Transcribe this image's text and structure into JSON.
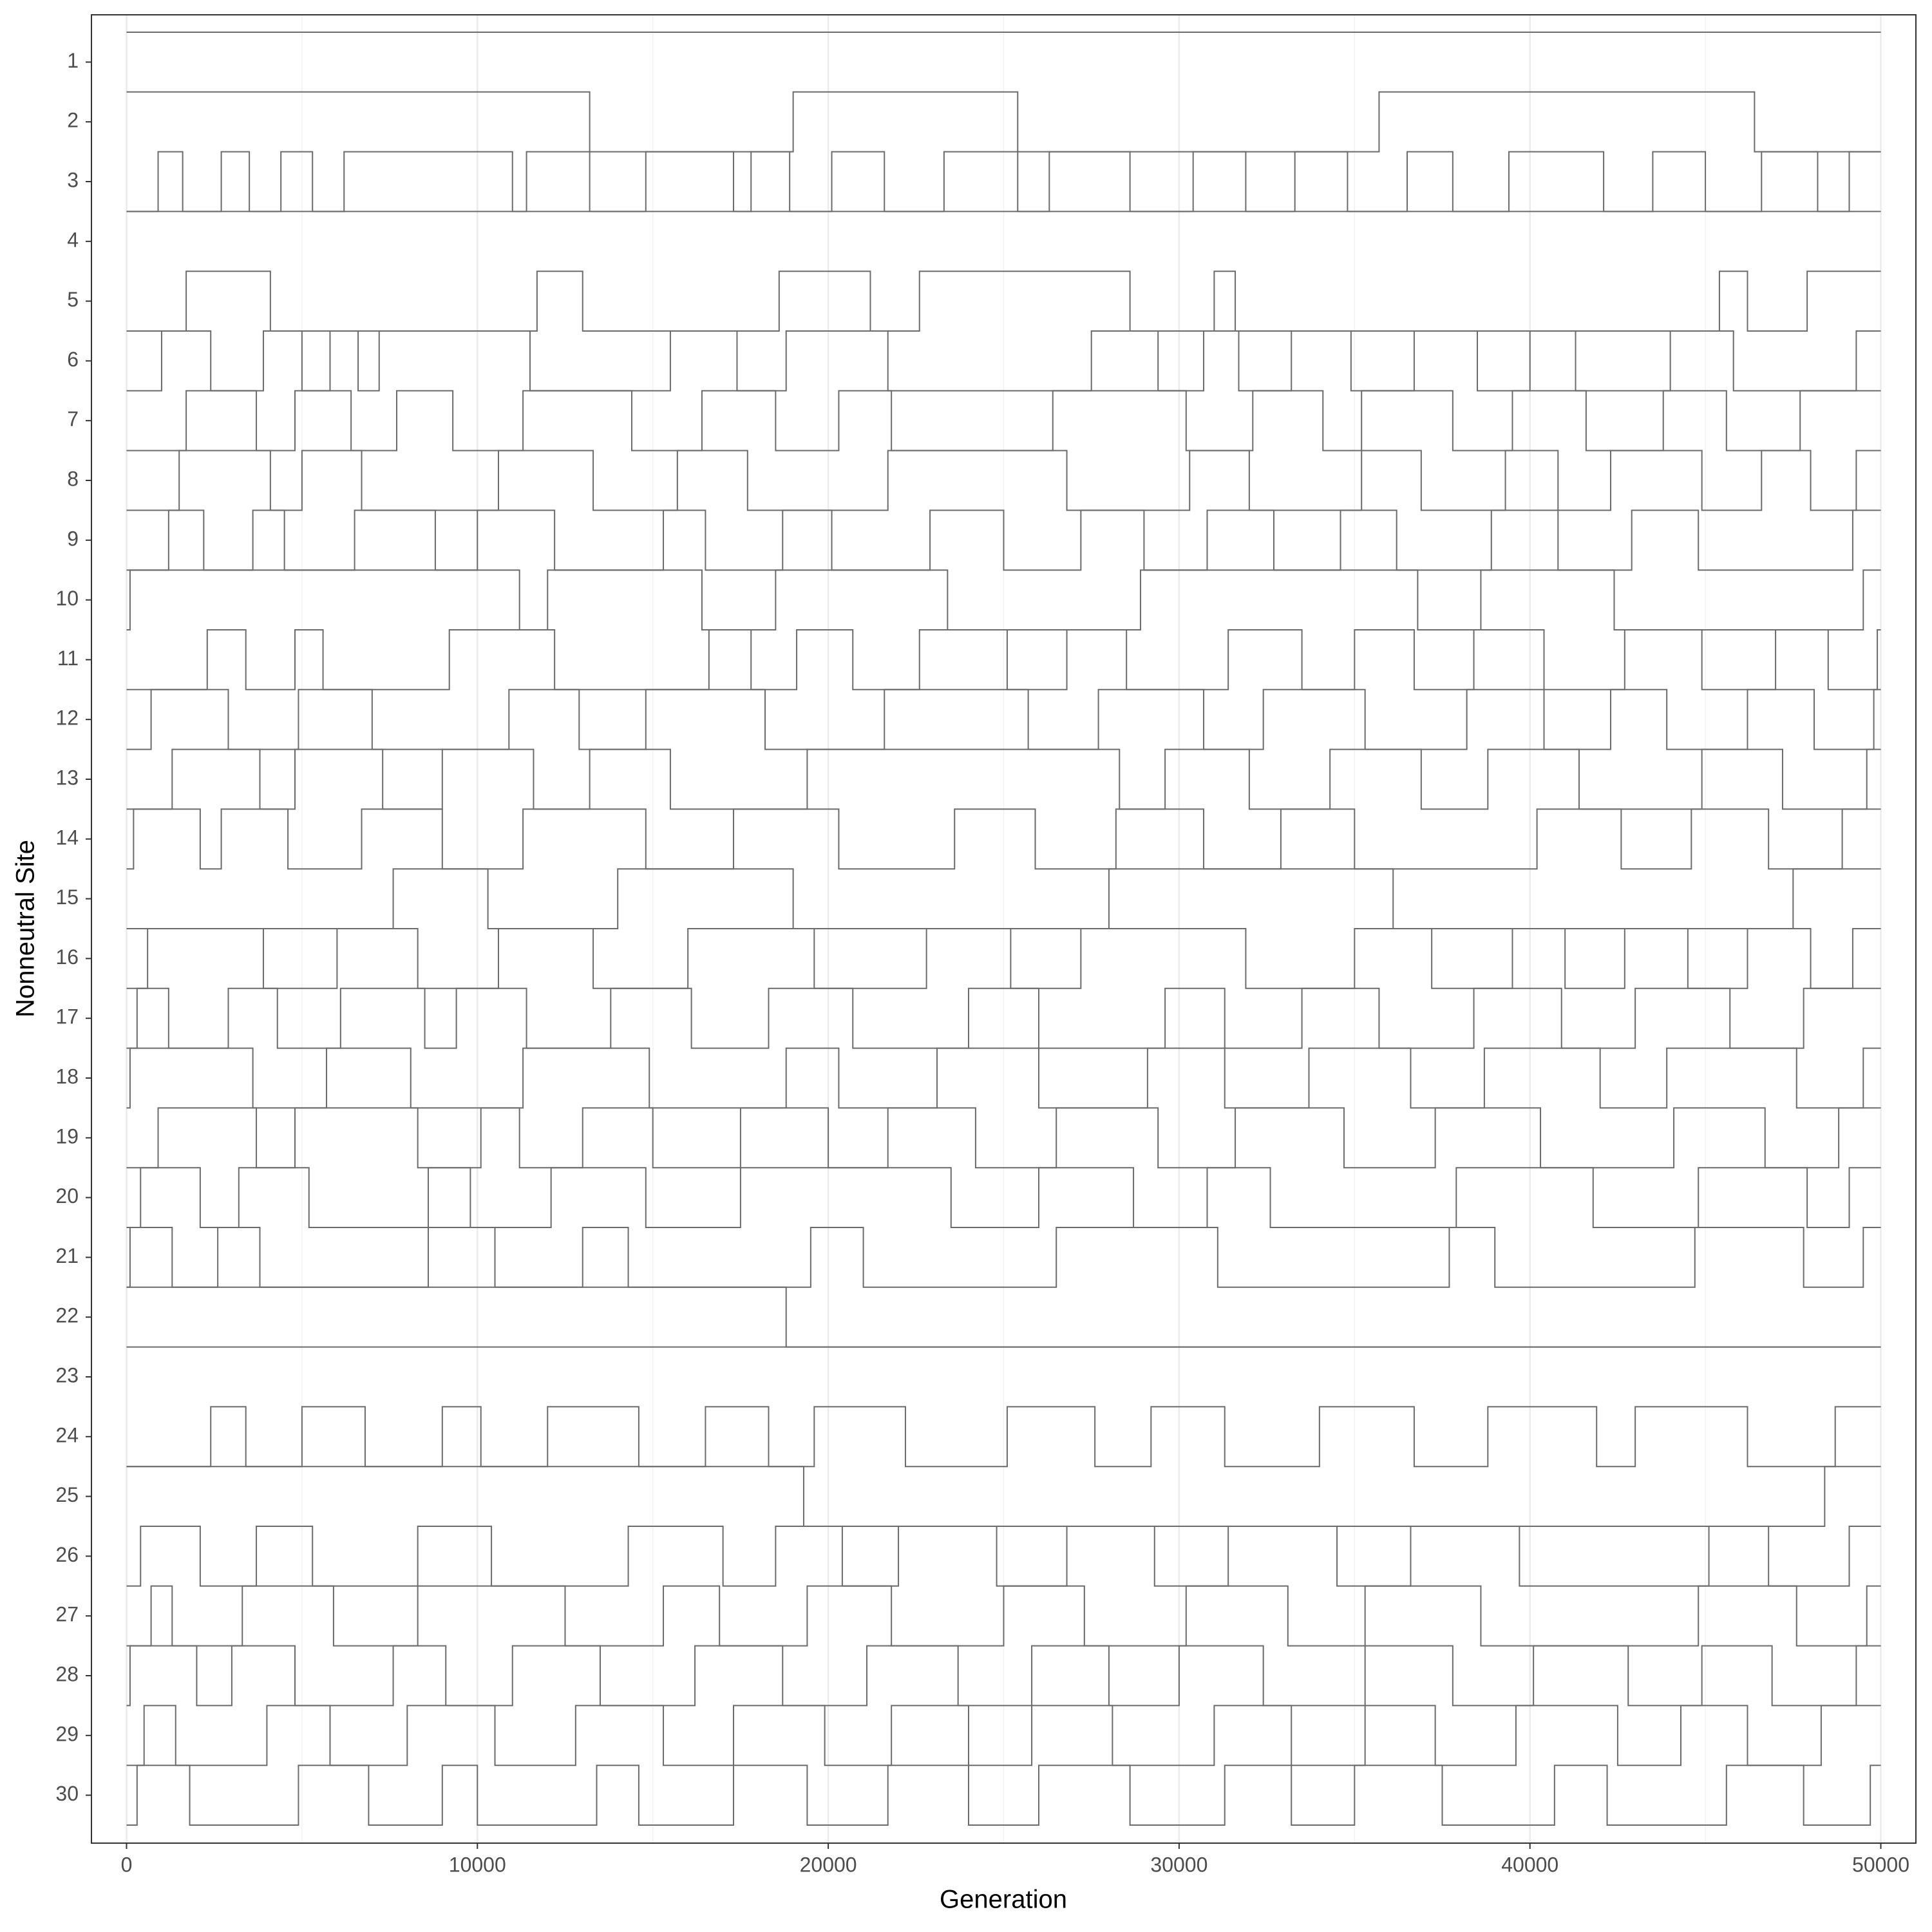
{
  "chart_data": {
    "type": "step-line",
    "x_label": "Generation",
    "y_label": "Nonneutral Site",
    "color": "#6b6b6b",
    "grid": true,
    "minor_grid": true,
    "xlim": [
      -1000,
      51000
    ],
    "xticks": [
      0,
      10000,
      20000,
      30000,
      40000,
      50000
    ],
    "ylim": [
      0,
      1
    ],
    "series": [
      {
        "name": "1",
        "x": [
          0,
          50000
        ],
        "values": [
          1,
          1
        ]
      },
      {
        "name": "2",
        "x": [
          0,
          13200,
          19000,
          25400,
          35700,
          46400,
          50000
        ],
        "values": [
          1,
          0,
          1,
          0,
          1,
          0,
          0
        ]
      },
      {
        "name": "3",
        "x": [
          0,
          900,
          1600,
          2700,
          3500,
          4400,
          5300,
          6200,
          11000,
          11400,
          13200,
          14800,
          17300,
          17800,
          18900,
          20100,
          21600,
          23300,
          25400,
          26300,
          28600,
          30400,
          31900,
          33300,
          34800,
          36500,
          37800,
          39400,
          42100,
          43500,
          45000,
          46600,
          48200,
          49100,
          50000
        ],
        "values": [
          0,
          1,
          0,
          1,
          0,
          1,
          0,
          1,
          0,
          1,
          0,
          1,
          0,
          1,
          0,
          1,
          0,
          1,
          0,
          1,
          0,
          1,
          0,
          1,
          0,
          1,
          0,
          1,
          0,
          1,
          0,
          1,
          0,
          1,
          1
        ]
      },
      {
        "name": "4",
        "x": [
          0,
          50000
        ],
        "values": [
          1,
          1
        ]
      },
      {
        "name": "5",
        "x": [
          0,
          1700,
          4100,
          11700,
          13000,
          18600,
          21200,
          22600,
          28600,
          31000,
          31600,
          45400,
          46200,
          47900,
          50000
        ],
        "values": [
          0,
          1,
          0,
          1,
          0,
          1,
          0,
          1,
          0,
          1,
          0,
          1,
          0,
          1,
          1
        ]
      },
      {
        "name": "6",
        "x": [
          0,
          1000,
          2400,
          3900,
          5000,
          5800,
          6600,
          7200,
          11500,
          15500,
          17400,
          18800,
          21700,
          27500,
          29400,
          30700,
          31700,
          33200,
          34900,
          36700,
          38500,
          40000,
          41300,
          44000,
          45800,
          49300,
          50000
        ],
        "values": [
          0,
          1,
          0,
          1,
          0,
          1,
          0,
          1,
          0,
          1,
          0,
          1,
          0,
          1,
          0,
          1,
          0,
          1,
          0,
          1,
          0,
          1,
          0,
          1,
          0,
          1,
          1
        ]
      },
      {
        "name": "7",
        "x": [
          0,
          1700,
          3700,
          4800,
          6400,
          7700,
          9300,
          11300,
          14400,
          16400,
          18500,
          20300,
          21800,
          26400,
          30200,
          32100,
          34100,
          35200,
          37800,
          39500,
          41600,
          43800,
          45600,
          47700,
          50000
        ],
        "values": [
          0,
          1,
          0,
          1,
          0,
          1,
          0,
          1,
          0,
          1,
          0,
          1,
          0,
          1,
          0,
          1,
          0,
          1,
          0,
          1,
          0,
          1,
          0,
          1,
          1
        ]
      },
      {
        "name": "8",
        "x": [
          0,
          1500,
          4100,
          5000,
          6700,
          10600,
          13300,
          15700,
          17700,
          21700,
          26800,
          30300,
          32000,
          35200,
          36900,
          39300,
          40800,
          42300,
          44900,
          46600,
          48000,
          49300,
          50000
        ],
        "values": [
          0,
          1,
          0,
          1,
          0,
          1,
          0,
          1,
          0,
          1,
          0,
          1,
          0,
          1,
          0,
          1,
          0,
          1,
          0,
          1,
          0,
          1,
          1
        ]
      },
      {
        "name": "9",
        "x": [
          0,
          1200,
          2200,
          3600,
          4500,
          6500,
          8800,
          10000,
          12200,
          15300,
          16500,
          18700,
          20100,
          22900,
          25000,
          27200,
          29000,
          30800,
          32700,
          34600,
          36200,
          38900,
          40800,
          42900,
          44800,
          49200,
          50000
        ],
        "values": [
          0,
          1,
          0,
          1,
          0,
          1,
          0,
          1,
          0,
          1,
          0,
          1,
          0,
          1,
          0,
          1,
          0,
          1,
          0,
          1,
          0,
          1,
          0,
          1,
          0,
          1,
          1
        ]
      },
      {
        "name": "10",
        "x": [
          0,
          100,
          11200,
          12000,
          16400,
          18500,
          23400,
          28900,
          36800,
          38600,
          42400,
          49500,
          50000
        ],
        "values": [
          0,
          1,
          0,
          1,
          0,
          1,
          0,
          1,
          0,
          1,
          0,
          1,
          1
        ]
      },
      {
        "name": "11",
        "x": [
          0,
          2300,
          3400,
          4800,
          5600,
          9200,
          12200,
          16600,
          17800,
          19100,
          20700,
          22600,
          25100,
          26800,
          28500,
          31400,
          33500,
          35000,
          36700,
          38400,
          40400,
          42700,
          44900,
          47000,
          48500,
          49900,
          50000
        ],
        "values": [
          0,
          1,
          0,
          1,
          0,
          1,
          0,
          1,
          0,
          1,
          0,
          1,
          0,
          1,
          0,
          1,
          0,
          1,
          0,
          1,
          0,
          1,
          0,
          1,
          0,
          1,
          1
        ]
      },
      {
        "name": "12",
        "x": [
          0,
          700,
          2900,
          4900,
          7000,
          10900,
          12900,
          14800,
          18200,
          21600,
          25700,
          27700,
          30700,
          32400,
          35300,
          38200,
          40400,
          42300,
          43900,
          46200,
          48100,
          49800,
          50000
        ],
        "values": [
          0,
          1,
          0,
          1,
          0,
          1,
          0,
          1,
          0,
          1,
          0,
          1,
          0,
          1,
          0,
          1,
          0,
          1,
          0,
          1,
          0,
          1,
          1
        ]
      },
      {
        "name": "13",
        "x": [
          0,
          1300,
          3800,
          4800,
          7300,
          9000,
          11600,
          13200,
          15500,
          19400,
          28300,
          29600,
          32000,
          34300,
          36900,
          38800,
          41400,
          44900,
          47200,
          49600,
          50000
        ],
        "values": [
          0,
          1,
          0,
          1,
          0,
          1,
          0,
          1,
          0,
          1,
          0,
          1,
          0,
          1,
          0,
          1,
          0,
          1,
          0,
          1,
          1
        ]
      },
      {
        "name": "14",
        "x": [
          0,
          200,
          2100,
          2700,
          4600,
          6700,
          9000,
          11300,
          14800,
          17300,
          20300,
          23600,
          25900,
          28200,
          30700,
          32900,
          35000,
          40200,
          42600,
          44600,
          46800,
          48900,
          50000
        ],
        "values": [
          0,
          1,
          0,
          1,
          0,
          1,
          0,
          1,
          0,
          1,
          0,
          1,
          0,
          1,
          0,
          1,
          0,
          1,
          0,
          1,
          0,
          1,
          1
        ]
      },
      {
        "name": "15",
        "x": [
          0,
          7600,
          10300,
          14000,
          19000,
          28000,
          36100,
          47500,
          50000
        ],
        "values": [
          0,
          1,
          0,
          1,
          0,
          1,
          0,
          1,
          1
        ]
      },
      {
        "name": "16",
        "x": [
          0,
          600,
          3900,
          6000,
          8300,
          10600,
          13300,
          16000,
          19600,
          22800,
          25200,
          27200,
          31900,
          35000,
          37200,
          39500,
          41000,
          42700,
          44500,
          46200,
          48000,
          49200,
          50000
        ],
        "values": [
          0,
          1,
          0,
          1,
          0,
          1,
          0,
          1,
          0,
          1,
          0,
          1,
          0,
          1,
          0,
          1,
          0,
          1,
          0,
          1,
          0,
          1,
          1
        ]
      },
      {
        "name": "17",
        "x": [
          0,
          300,
          1200,
          2900,
          4300,
          6100,
          8500,
          9400,
          11400,
          13800,
          16100,
          18300,
          20700,
          24000,
          26000,
          29600,
          31300,
          33500,
          35700,
          38400,
          40900,
          43000,
          45700,
          47800,
          50000
        ],
        "values": [
          0,
          1,
          0,
          1,
          0,
          1,
          0,
          1,
          0,
          1,
          0,
          1,
          0,
          1,
          0,
          1,
          0,
          1,
          0,
          1,
          0,
          1,
          0,
          1,
          1
        ]
      },
      {
        "name": "18",
        "x": [
          0,
          100,
          3600,
          5700,
          8100,
          11300,
          14900,
          18800,
          20300,
          23100,
          26000,
          29100,
          31300,
          33700,
          36600,
          38700,
          42000,
          43900,
          47600,
          49500,
          50000
        ],
        "values": [
          0,
          1,
          0,
          1,
          0,
          1,
          0,
          1,
          0,
          1,
          0,
          1,
          0,
          1,
          0,
          1,
          0,
          1,
          0,
          1,
          1
        ]
      },
      {
        "name": "19",
        "x": [
          0,
          900,
          3700,
          4800,
          8300,
          10100,
          11200,
          13000,
          15000,
          17500,
          20000,
          21700,
          24200,
          26500,
          29400,
          31600,
          34700,
          37300,
          40300,
          44100,
          46700,
          48800,
          50000
        ],
        "values": [
          0,
          1,
          0,
          1,
          0,
          1,
          0,
          1,
          0,
          1,
          0,
          1,
          0,
          1,
          0,
          1,
          0,
          1,
          0,
          1,
          0,
          1,
          1
        ]
      },
      {
        "name": "20",
        "x": [
          0,
          400,
          2100,
          3200,
          5200,
          8600,
          9800,
          12100,
          14800,
          17500,
          23500,
          26000,
          28700,
          30800,
          32600,
          37900,
          41800,
          44800,
          47900,
          49100,
          50000
        ],
        "values": [
          0,
          1,
          0,
          1,
          0,
          1,
          0,
          1,
          0,
          1,
          0,
          1,
          0,
          1,
          0,
          1,
          0,
          1,
          0,
          1,
          1
        ]
      },
      {
        "name": "21",
        "x": [
          0,
          100,
          1300,
          2600,
          3800,
          8600,
          10500,
          13000,
          14300,
          19500,
          21000,
          26500,
          31100,
          37700,
          39000,
          44700,
          47800,
          49500,
          50000
        ],
        "values": [
          0,
          1,
          0,
          1,
          0,
          1,
          0,
          1,
          0,
          1,
          0,
          1,
          0,
          1,
          0,
          1,
          0,
          1,
          1
        ]
      },
      {
        "name": "22",
        "x": [
          0,
          18800,
          50000
        ],
        "values": [
          1,
          0,
          0
        ]
      },
      {
        "name": "23",
        "x": [
          0,
          50000
        ],
        "values": [
          1,
          1
        ]
      },
      {
        "name": "24",
        "x": [
          0,
          2400,
          3400,
          5000,
          6800,
          9000,
          10100,
          12000,
          14600,
          16500,
          18300,
          19600,
          22200,
          25100,
          27600,
          29200,
          31300,
          34000,
          36700,
          38800,
          41900,
          43000,
          46200,
          48700,
          50000
        ],
        "values": [
          0,
          1,
          0,
          1,
          0,
          1,
          0,
          1,
          0,
          1,
          0,
          1,
          0,
          1,
          0,
          1,
          0,
          1,
          0,
          1,
          0,
          1,
          0,
          1,
          1
        ]
      },
      {
        "name": "25",
        "x": [
          0,
          19300,
          48400,
          50000
        ],
        "values": [
          1,
          0,
          1,
          1
        ]
      },
      {
        "name": "26",
        "x": [
          0,
          400,
          2100,
          3700,
          5300,
          8300,
          10400,
          14300,
          17000,
          18500,
          20400,
          22000,
          24800,
          26800,
          29300,
          31400,
          34500,
          36600,
          39700,
          45100,
          46800,
          49100,
          50000
        ],
        "values": [
          0,
          1,
          0,
          1,
          0,
          1,
          0,
          1,
          0,
          1,
          0,
          1,
          0,
          1,
          0,
          1,
          0,
          1,
          0,
          1,
          0,
          1,
          1
        ]
      },
      {
        "name": "27",
        "x": [
          0,
          700,
          1300,
          3300,
          5900,
          8300,
          12500,
          15300,
          16900,
          19400,
          21800,
          25000,
          27300,
          30200,
          33100,
          35300,
          38600,
          44800,
          47600,
          49600,
          50000
        ],
        "values": [
          0,
          1,
          0,
          1,
          0,
          1,
          0,
          1,
          0,
          1,
          0,
          1,
          0,
          1,
          0,
          1,
          0,
          1,
          0,
          1,
          1
        ]
      },
      {
        "name": "28",
        "x": [
          0,
          100,
          2000,
          3000,
          4800,
          7600,
          9100,
          11000,
          13500,
          16200,
          18700,
          21100,
          23700,
          25800,
          28000,
          30000,
          32400,
          35300,
          37800,
          40100,
          42800,
          44900,
          46900,
          49300,
          50000
        ],
        "values": [
          0,
          1,
          0,
          1,
          0,
          1,
          0,
          1,
          0,
          1,
          0,
          1,
          0,
          1,
          0,
          1,
          0,
          1,
          0,
          1,
          0,
          1,
          0,
          1,
          1
        ]
      },
      {
        "name": "29",
        "x": [
          0,
          500,
          1400,
          4000,
          5800,
          8000,
          10500,
          12800,
          15300,
          17300,
          19900,
          21800,
          24000,
          25800,
          28100,
          31000,
          33200,
          35300,
          37300,
          39600,
          42500,
          44300,
          46200,
          48300,
          50000
        ],
        "values": [
          0,
          1,
          0,
          1,
          0,
          1,
          0,
          1,
          0,
          1,
          0,
          1,
          0,
          1,
          0,
          1,
          0,
          1,
          0,
          1,
          0,
          1,
          0,
          1,
          1
        ]
      },
      {
        "name": "30",
        "x": [
          0,
          300,
          1800,
          4900,
          6900,
          9000,
          10000,
          13400,
          14600,
          17300,
          19400,
          21700,
          24000,
          26000,
          28600,
          31300,
          33200,
          35000,
          37500,
          40700,
          42200,
          45600,
          47800,
          49700,
          50000
        ],
        "values": [
          0,
          1,
          0,
          1,
          0,
          1,
          0,
          1,
          0,
          1,
          0,
          1,
          0,
          1,
          0,
          1,
          0,
          1,
          0,
          1,
          0,
          1,
          0,
          1,
          1
        ]
      }
    ]
  }
}
